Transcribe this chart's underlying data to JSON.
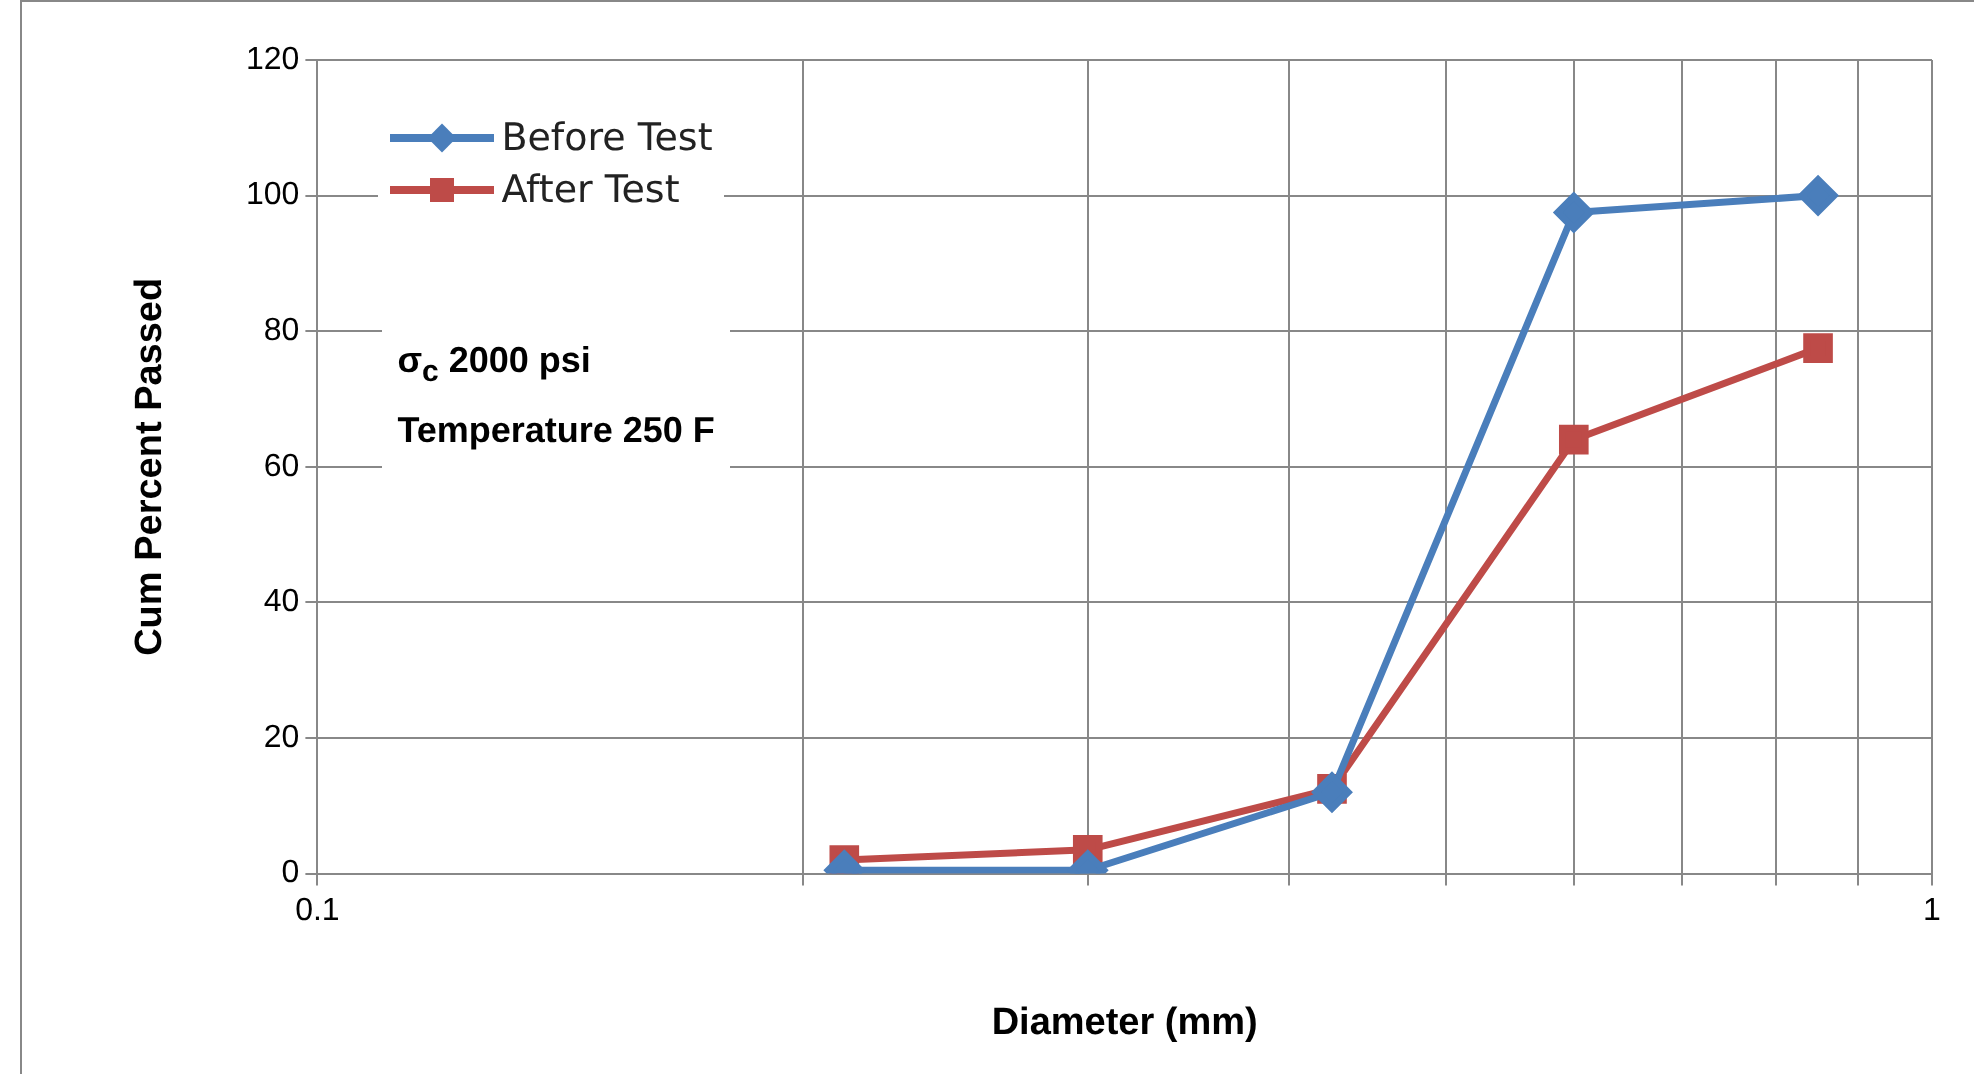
{
  "chart_data": {
    "type": "line",
    "xlabel": "Diameter (mm)",
    "ylabel": "Cum Percent Passed",
    "x": [
      0.212,
      0.3,
      0.425,
      0.6,
      0.85
    ],
    "series": [
      {
        "name": "Before Test",
        "color": "#4a7ebb",
        "marker": "diamond",
        "values": [
          0.5,
          0.5,
          12,
          97.5,
          100
        ]
      },
      {
        "name": "After Test",
        "color": "#be4b48",
        "marker": "square",
        "values": [
          2,
          3.5,
          12.5,
          64,
          77.5
        ]
      }
    ],
    "log": "x",
    "xlim": [
      0.1,
      1
    ],
    "xticks": [
      0.1,
      {
        "value": 0.2,
        "label": null
      },
      {
        "value": 0.3,
        "label": null
      },
      {
        "value": 0.4,
        "label": null
      },
      {
        "value": 0.5,
        "label": null
      },
      {
        "value": 0.6,
        "label": null
      },
      {
        "value": 0.7,
        "label": null
      },
      {
        "value": 0.8,
        "label": null
      },
      {
        "value": 0.9,
        "label": null
      },
      1
    ],
    "ylim": [
      0,
      120
    ],
    "yticks": [
      0,
      20,
      40,
      60,
      80,
      100,
      120
    ],
    "grid": true,
    "legend": "top left",
    "line_style": "solid",
    "annotations": [
      "σ$_{c}$ 2000 psi\nTemperature 250 F"
    ]
  }
}
